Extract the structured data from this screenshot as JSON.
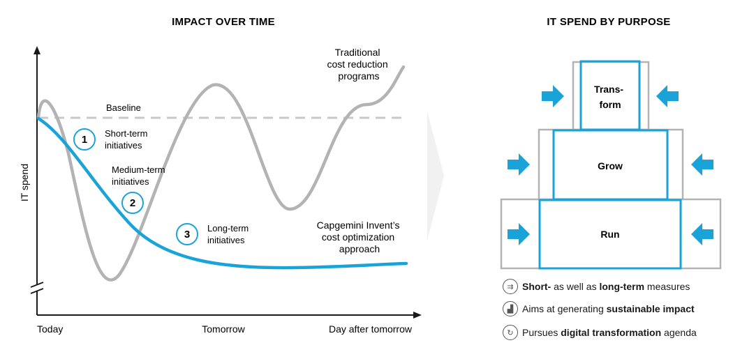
{
  "left": {
    "title": "IMPACT OVER TIME",
    "y_axis_label": "IT spend",
    "baseline_label": "Baseline",
    "x_ticks": [
      "Today",
      "Tomorrow",
      "Day after tomorrow"
    ],
    "traditional_label": [
      "Traditional",
      "cost reduction",
      "programs"
    ],
    "capgemini_label": [
      "Capgemini Invent’s",
      "cost optimization",
      "approach"
    ],
    "initiatives": [
      {
        "number": "1",
        "label": [
          "Short-term",
          "initiatives"
        ]
      },
      {
        "number": "2",
        "label": [
          "Medium-term",
          "initiatives"
        ]
      },
      {
        "number": "3",
        "label": [
          "Long-term",
          "initiatives"
        ]
      }
    ]
  },
  "right": {
    "title": "IT SPEND BY PURPOSE",
    "blocks": [
      {
        "label": [
          "Trans-",
          "form"
        ]
      },
      {
        "label": [
          "Grow"
        ]
      },
      {
        "label": [
          "Run"
        ]
      }
    ],
    "bullets": [
      {
        "icon": "arrows-converge-icon",
        "parts": [
          {
            "b": true,
            "t": "Short-"
          },
          {
            "b": false,
            "t": " as well as "
          },
          {
            "b": true,
            "t": "long-term"
          },
          {
            "b": false,
            "t": " measures"
          }
        ]
      },
      {
        "icon": "growth-chart-icon",
        "parts": [
          {
            "b": false,
            "t": "Aims at generating "
          },
          {
            "b": true,
            "t": "sustainable impact"
          }
        ]
      },
      {
        "icon": "digital-cycle-icon",
        "parts": [
          {
            "b": false,
            "t": "Pursues "
          },
          {
            "b": true,
            "t": "digital transformation"
          },
          {
            "b": false,
            "t": " agenda"
          }
        ]
      }
    ]
  },
  "colors": {
    "accent_blue": "#1aa3d8",
    "gray_line": "#b3b3b3",
    "baseline_dash": "#c8c8c8",
    "axis": "#1a1a1a"
  }
}
